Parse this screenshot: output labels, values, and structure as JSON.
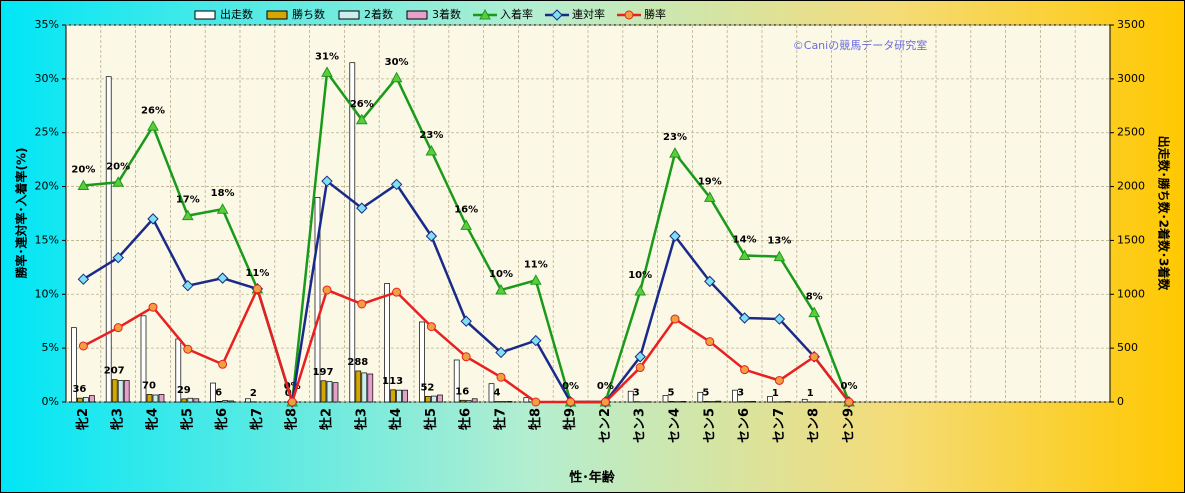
{
  "chart_data": {
    "type": "combo",
    "annotation": "©Caniの競馬データ研究室",
    "x_label": "性･年齢",
    "y_label": "勝率･連対率･入着率(%)",
    "y2_label": "出走数･勝ち数･2着数･3着数",
    "categories": [
      "牝2",
      "牝3",
      "牝4",
      "牝5",
      "牝6",
      "牝7",
      "牝8",
      "牡2",
      "牡3",
      "牡4",
      "牡5",
      "牡6",
      "牡7",
      "牡8",
      "牡9",
      "セン2",
      "セン3",
      "セン4",
      "セン5",
      "セン6",
      "セン7",
      "セン8",
      "セン9",
      null,
      null,
      null,
      null,
      null,
      null,
      null
    ],
    "ylim": [
      0,
      35
    ],
    "yticks": [
      {
        "value": 0,
        "label": "0%"
      },
      {
        "value": 5,
        "label": "5%"
      },
      {
        "value": 10,
        "label": "10%"
      },
      {
        "value": 15,
        "label": "15%"
      },
      {
        "value": 20,
        "label": "20%"
      },
      {
        "value": 25,
        "label": "25%"
      },
      {
        "value": 30,
        "label": "30%"
      },
      {
        "value": 35,
        "label": "35%"
      }
    ],
    "y2lim": [
      0,
      3500
    ],
    "y2ticks": [
      0,
      500,
      1000,
      1500,
      2000,
      2500,
      3000,
      3500
    ],
    "grid": true,
    "series": [
      {
        "name": "出走数",
        "type": "bar",
        "axis": "y2",
        "color": "#ffffff",
        "values": [
          690,
          3020,
          800,
          585,
          176,
          30,
          0,
          1900,
          3150,
          1100,
          743,
          390,
          170,
          40,
          3,
          5,
          100,
          60,
          90,
          110,
          50,
          25,
          1,
          null,
          null,
          null,
          null,
          null,
          null,
          null
        ]
      },
      {
        "name": "勝ち数",
        "type": "bar",
        "axis": "y2",
        "color": "#d4a800",
        "values": [
          36,
          207,
          70,
          29,
          6,
          2,
          0,
          197,
          288,
          113,
          52,
          16,
          4,
          0,
          0,
          0,
          3,
          5,
          5,
          3,
          1,
          1,
          0,
          null,
          null,
          null,
          null,
          null,
          null,
          null
        ],
        "value_labels": [
          "36",
          "207",
          "70",
          "29",
          "6",
          "2",
          "0",
          "197",
          "288",
          "113",
          "52",
          "16",
          "4",
          null,
          null,
          null,
          "3",
          "5",
          "5",
          "3",
          "1",
          "1",
          null,
          null,
          null,
          null,
          null,
          null,
          null,
          null
        ]
      },
      {
        "name": "2着数",
        "type": "bar",
        "axis": "y2",
        "color": "#cdeeee",
        "values": [
          42,
          200,
          65,
          35,
          14,
          0,
          0,
          190,
          270,
          110,
          55,
          13,
          4,
          2,
          0,
          0,
          1,
          3,
          4,
          4,
          2,
          1,
          0,
          null,
          null,
          null,
          null,
          null,
          null,
          null
        ]
      },
      {
        "name": "3着数",
        "type": "bar",
        "axis": "y2",
        "color": "#e6a0cc",
        "values": [
          60,
          200,
          70,
          30,
          10,
          0,
          0,
          180,
          260,
          110,
          65,
          30,
          5,
          2,
          0,
          0,
          2,
          5,
          8,
          5,
          4,
          1,
          0,
          null,
          null,
          null,
          null,
          null,
          null,
          null
        ]
      },
      {
        "name": "入着率",
        "type": "line",
        "color": "#1a9a1a",
        "marker": "triangle",
        "marker_color": "#5ccc3c",
        "values": [
          20.1,
          20.4,
          25.6,
          17.3,
          17.9,
          10.5,
          0,
          30.6,
          26.2,
          30.1,
          23.3,
          16.4,
          10.4,
          11.3,
          0,
          0,
          10.3,
          23.1,
          19.0,
          13.6,
          13.5,
          8.3,
          0,
          null,
          null,
          null,
          null,
          null,
          null,
          null
        ],
        "value_labels": [
          "20%",
          "20%",
          "26%",
          "17%",
          "18%",
          "11%",
          "0%",
          "31%",
          "26%",
          "30%",
          "23%",
          "16%",
          "10%",
          "11%",
          "0%",
          "0%",
          "10%",
          "23%",
          "19%",
          "14%",
          "13%",
          "8%",
          "0%",
          null,
          null,
          null,
          null,
          null,
          null,
          null
        ]
      },
      {
        "name": "連対率",
        "type": "line",
        "color": "#1a2a8a",
        "marker": "diamond",
        "marker_color": "#7ee0f0",
        "values": [
          11.4,
          13.4,
          17.0,
          10.8,
          11.5,
          10.5,
          0,
          20.5,
          18.0,
          20.2,
          15.4,
          7.5,
          4.6,
          5.7,
          0,
          0,
          4.2,
          15.4,
          11.2,
          7.8,
          7.7,
          4.2,
          0,
          null,
          null,
          null,
          null,
          null,
          null,
          null
        ]
      },
      {
        "name": "勝率",
        "type": "line",
        "color": "#e82020",
        "marker": "circle",
        "marker_color": "#f0a040",
        "values": [
          5.2,
          6.9,
          8.8,
          4.9,
          3.5,
          10.5,
          0,
          10.4,
          9.1,
          10.2,
          7.0,
          4.2,
          2.3,
          0,
          0,
          0,
          3.2,
          7.7,
          5.6,
          3.0,
          2.0,
          4.2,
          0,
          null,
          null,
          null,
          null,
          null,
          null,
          null
        ]
      }
    ]
  }
}
